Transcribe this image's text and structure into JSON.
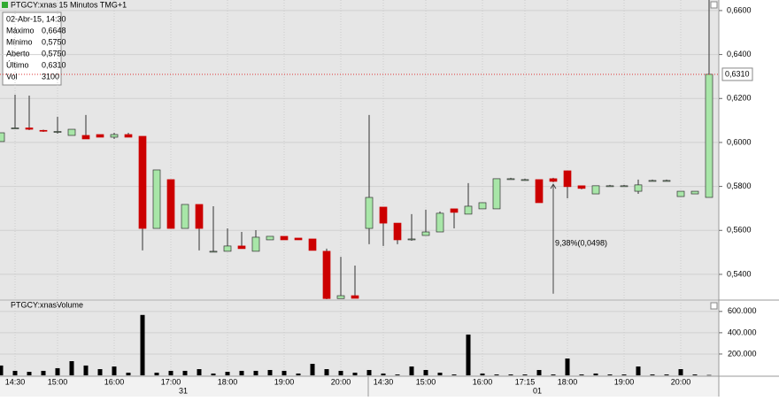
{
  "chart_data": [
    {
      "type": "candlestick",
      "title": "PTGCY:xnas 15 Minutos TMG+1",
      "categories": [
        null,
        "14:30",
        null,
        null,
        "15:00",
        null,
        null,
        null,
        "16:00",
        null,
        null,
        null,
        "17:00",
        null,
        null,
        null,
        "18:00",
        null,
        null,
        null,
        "19:00",
        null,
        null,
        null,
        "20:00",
        null,
        null,
        "14:30",
        null,
        null,
        "15:00",
        null,
        null,
        null,
        "16:00",
        null,
        null,
        "17:15",
        null,
        null,
        "18:00",
        null,
        null,
        null,
        "19:00",
        null,
        null,
        null,
        "20:00",
        null,
        null
      ],
      "days": [
        "31",
        "01"
      ],
      "open": [
        0.6004,
        0.6062,
        0.6066,
        0.6055,
        0.6048,
        0.6032,
        0.6032,
        0.6036,
        0.6024,
        0.6036,
        0.6028,
        0.5609,
        0.5831,
        0.5609,
        0.5718,
        0.5505,
        0.5505,
        0.5529,
        0.5505,
        0.5557,
        0.5573,
        0.5565,
        0.5561,
        0.5505,
        0.529,
        0.5303,
        0.5609,
        0.5706,
        0.5633,
        0.5561,
        0.5577,
        0.5593,
        0.5698,
        0.5674,
        0.5698,
        0.5698,
        0.5835,
        0.5831,
        0.5831,
        0.5835,
        0.5871,
        0.5803,
        0.5766,
        0.5803,
        0.5803,
        0.5778,
        0.5827,
        0.5827,
        0.5754,
        0.5766,
        0.575
      ],
      "close": [
        0.6044,
        0.6066,
        0.606,
        0.6052,
        0.605,
        0.606,
        0.6016,
        0.6024,
        0.6036,
        0.6024,
        0.5609,
        0.5875,
        0.5609,
        0.5718,
        0.5609,
        0.5505,
        0.5529,
        0.5517,
        0.5569,
        0.5573,
        0.5557,
        0.5557,
        0.5509,
        0.529,
        0.5303,
        0.5291,
        0.575,
        0.5633,
        0.5557,
        0.5561,
        0.5593,
        0.5678,
        0.5682,
        0.571,
        0.5726,
        0.5835,
        0.5835,
        0.5831,
        0.5726,
        0.5823,
        0.5799,
        0.5791,
        0.5803,
        0.5803,
        0.5803,
        0.5807,
        0.5827,
        0.5827,
        0.5778,
        0.5778,
        0.631
      ],
      "high": [
        0.6044,
        0.6217,
        0.6213,
        0.6058,
        0.6117,
        0.606,
        0.6125,
        0.6036,
        0.6044,
        0.6044,
        0.6028,
        0.5875,
        0.5831,
        0.5718,
        0.5718,
        0.571,
        0.5609,
        0.5593,
        0.5601,
        0.5573,
        0.5573,
        0.5565,
        0.5561,
        0.5517,
        0.548,
        0.544,
        0.6125,
        0.5706,
        0.5633,
        0.5674,
        0.5694,
        0.5686,
        0.5698,
        0.5815,
        0.5726,
        0.5835,
        0.5839,
        0.5835,
        0.5831,
        0.5839,
        0.5871,
        0.5803,
        0.5803,
        0.5807,
        0.5807,
        0.5831,
        0.5831,
        0.5831,
        0.5778,
        0.5778,
        0.6648
      ],
      "low": [
        0.6004,
        0.6062,
        0.6056,
        0.6048,
        0.604,
        0.6032,
        0.6016,
        0.6024,
        0.6016,
        0.6024,
        0.5509,
        0.5609,
        0.5609,
        0.5609,
        0.5509,
        0.5501,
        0.5505,
        0.5517,
        0.5505,
        0.5557,
        0.5557,
        0.5557,
        0.5509,
        0.5287,
        0.529,
        0.5291,
        0.5537,
        0.5529,
        0.5537,
        0.5553,
        0.5577,
        0.5593,
        0.5609,
        0.5674,
        0.5698,
        0.5698,
        0.5831,
        0.5827,
        0.5726,
        0.5819,
        0.5746,
        0.5787,
        0.5766,
        0.5799,
        0.5799,
        0.5766,
        0.5823,
        0.5823,
        0.5754,
        0.5766,
        0.575
      ],
      "up_color": "#a8e6a8",
      "down_color": "#cc0000",
      "ylim": [
        0.5287,
        0.6648
      ],
      "yticks": [
        {
          "value": 0.54,
          "label": "0,5400"
        },
        {
          "value": 0.56,
          "label": "0,5600"
        },
        {
          "value": 0.58,
          "label": "0,5800"
        },
        {
          "value": 0.6,
          "label": "0,6000"
        },
        {
          "value": 0.62,
          "label": "0,6200"
        },
        {
          "value": 0.64,
          "label": "0,6400"
        },
        {
          "value": 0.66,
          "label": "0,6600"
        }
      ],
      "grid": true,
      "last_price": {
        "value": 0.631,
        "label": "0,6310"
      },
      "annotation": {
        "label": "9,38%(0,0498)",
        "from": 0.5312,
        "to": 0.581,
        "index": 39
      },
      "info": {
        "date": "02-Abr-15, 14:30",
        "rows": [
          [
            "Máximo",
            "0,6648"
          ],
          [
            "Mínimo",
            "0,5750"
          ],
          [
            "Aberto",
            "0,5750"
          ],
          [
            "Último",
            "0,6310"
          ],
          [
            "Vol",
            "3100"
          ]
        ]
      }
    },
    {
      "type": "bar",
      "title": "PTGCY:xnasVolume",
      "color": "#000000",
      "values": [
        92000,
        42000,
        33000,
        42000,
        67000,
        133000,
        92000,
        58000,
        83000,
        25000,
        567000,
        25000,
        42000,
        42000,
        58000,
        17000,
        33000,
        42000,
        42000,
        50000,
        42000,
        17000,
        108000,
        58000,
        42000,
        25000,
        50000,
        17000,
        8000,
        83000,
        50000,
        25000,
        8000,
        383000,
        17000,
        8000,
        8000,
        8000,
        50000,
        8000,
        158000,
        8000,
        17000,
        8000,
        8000,
        83000,
        8000,
        8000,
        58000,
        8000,
        3100
      ],
      "ylim": [
        0,
        690000
      ],
      "yticks": [
        {
          "value": 200000,
          "label": "200.000"
        },
        {
          "value": 400000,
          "label": "400.000"
        },
        {
          "value": 600000,
          "label": "600.000"
        }
      ]
    }
  ]
}
